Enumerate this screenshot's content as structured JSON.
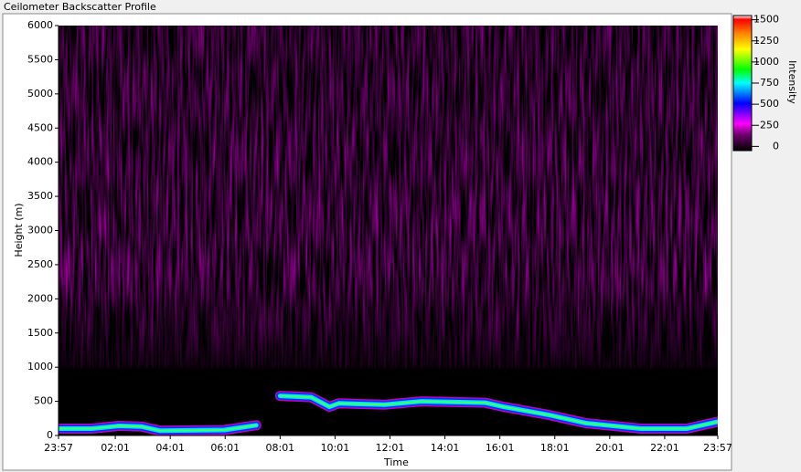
{
  "chart_data": {
    "type": "heatmap",
    "title": "Ceilometer Backscatter Profile",
    "x_label": "Time",
    "y_label": "Height (m)",
    "colorbar_label": "Intensity",
    "xlim": [
      0,
      1440
    ],
    "xticks": [
      {
        "value": 0,
        "label": "23:57"
      },
      {
        "value": 124,
        "label": "02:01"
      },
      {
        "value": 244,
        "label": "04:01"
      },
      {
        "value": 364,
        "label": "06:01"
      },
      {
        "value": 484,
        "label": "08:01"
      },
      {
        "value": 604,
        "label": "10:01"
      },
      {
        "value": 724,
        "label": "12:01"
      },
      {
        "value": 844,
        "label": "14:01"
      },
      {
        "value": 964,
        "label": "16:01"
      },
      {
        "value": 1084,
        "label": "18:01"
      },
      {
        "value": 1204,
        "label": "20:01"
      },
      {
        "value": 1324,
        "label": "22:01"
      },
      {
        "value": 1440,
        "label": "23:57"
      }
    ],
    "ylim": [
      0,
      6000
    ],
    "yticks": [
      0,
      500,
      1000,
      1500,
      2000,
      2500,
      3000,
      3500,
      4000,
      4500,
      5000,
      5500,
      6000
    ],
    "clim": [
      -50,
      1550
    ],
    "cticks": [
      0,
      250,
      500,
      750,
      1000,
      1250,
      1500
    ],
    "x": [
      0,
      72,
      132,
      182,
      222,
      362,
      432,
      452,
      484,
      552,
      592,
      612,
      712,
      792,
      932,
      972,
      1072,
      1152,
      1272,
      1372,
      1440
    ],
    "series": [
      {
        "values": [
          100,
          100,
          140,
          130,
          70,
          80,
          150,
          null,
          580,
          560,
          420,
          470,
          450,
          500,
          480,
          420,
          300,
          180,
          100,
          100,
          200
        ]
      }
    ]
  }
}
